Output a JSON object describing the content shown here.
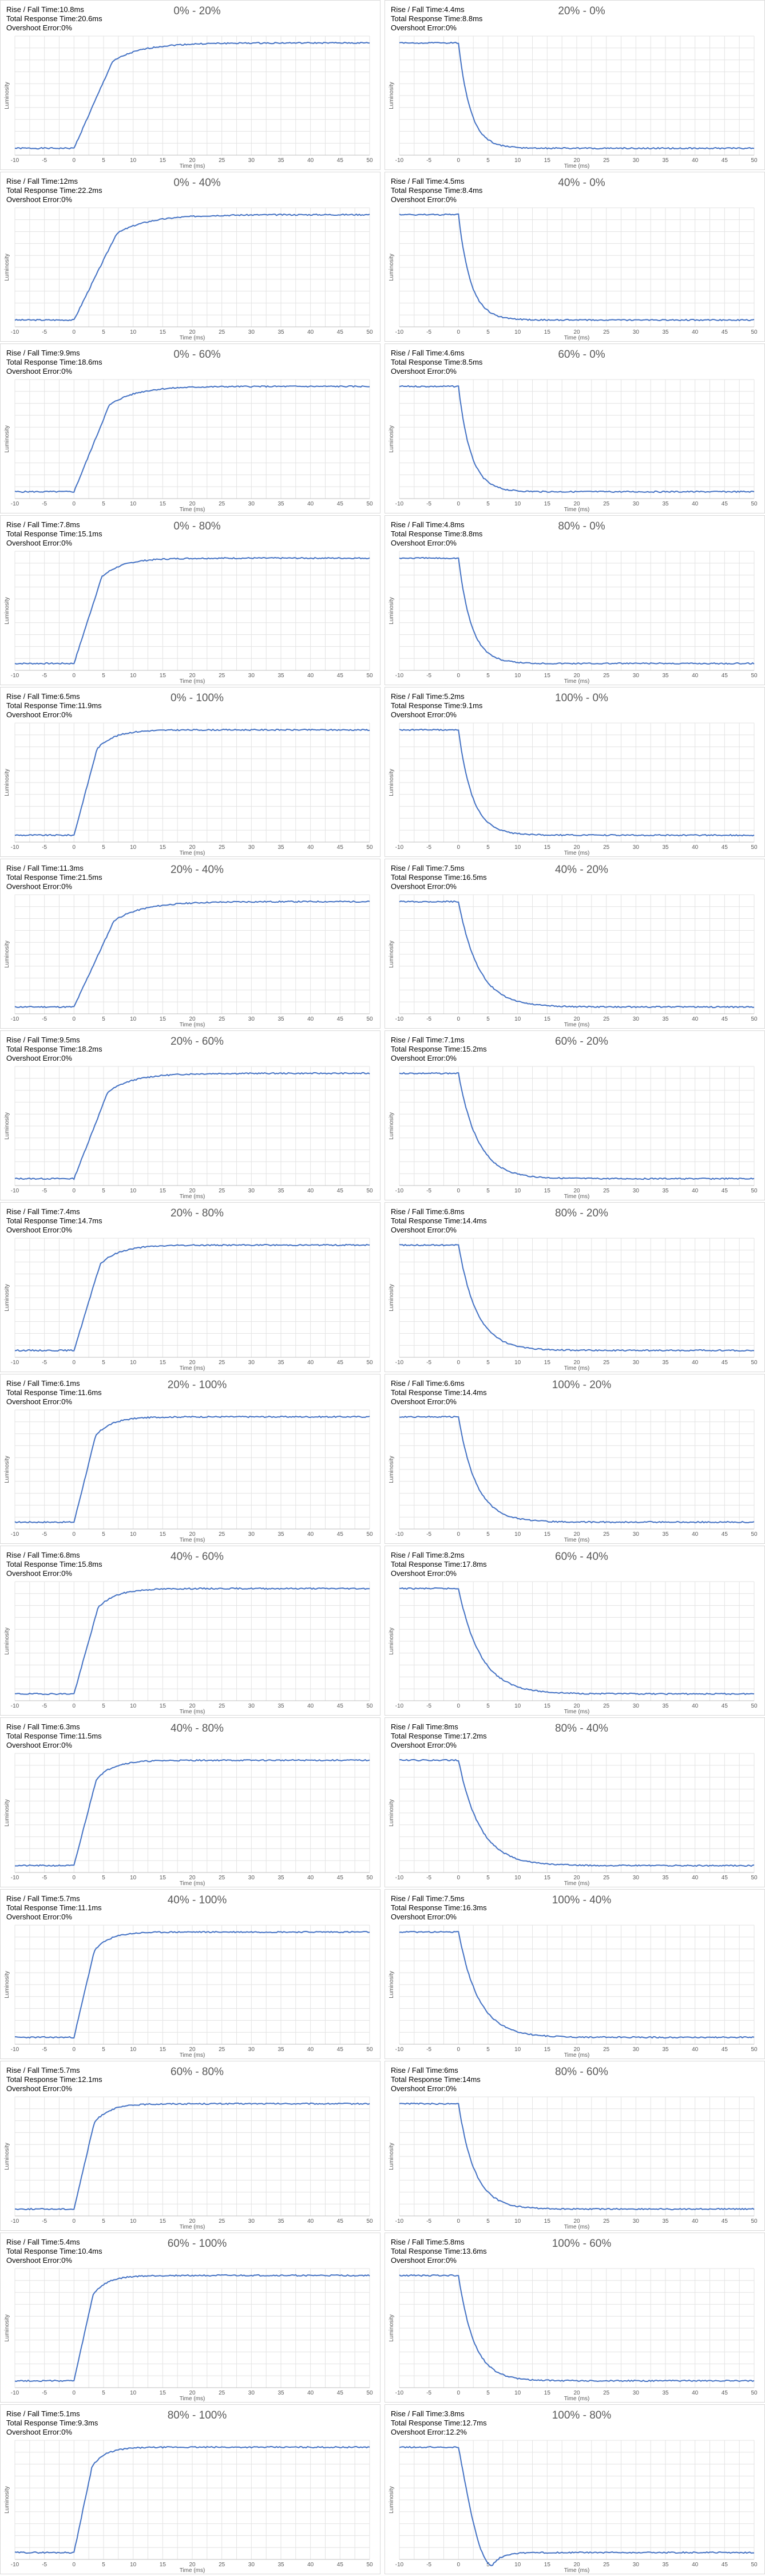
{
  "common": {
    "rf_label": "Rise / Fall Time:",
    "total_label": "Total Response Time:",
    "overshoot_label": "Overshoot Error:",
    "xlabel": "Time (ms)",
    "ylabel": "Luminosity",
    "xticks": [
      -10,
      -5,
      0,
      5,
      10,
      15,
      20,
      25,
      30,
      35,
      40,
      45,
      50
    ],
    "line_color": "#4472c4"
  },
  "panels": [
    {
      "title": "0% - 20%",
      "rise_fall": "10.8ms",
      "total": "20.6ms",
      "overshoot": "0%"
    },
    {
      "title": "20% - 0%",
      "rise_fall": "4.4ms",
      "total": "8.8ms",
      "overshoot": "0%"
    },
    {
      "title": "0% - 40%",
      "rise_fall": "12ms",
      "total": "22.2ms",
      "overshoot": "0%"
    },
    {
      "title": "40% - 0%",
      "rise_fall": "4.5ms",
      "total": "8.4ms",
      "overshoot": "0%"
    },
    {
      "title": "0% - 60%",
      "rise_fall": "9.9ms",
      "total": "18.6ms",
      "overshoot": "0%"
    },
    {
      "title": "60% - 0%",
      "rise_fall": "4.6ms",
      "total": "8.5ms",
      "overshoot": "0%"
    },
    {
      "title": "0% - 80%",
      "rise_fall": "7.8ms",
      "total": "15.1ms",
      "overshoot": "0%"
    },
    {
      "title": "80% - 0%",
      "rise_fall": "4.8ms",
      "total": "8.8ms",
      "overshoot": "0%"
    },
    {
      "title": "0% - 100%",
      "rise_fall": "6.5ms",
      "total": "11.9ms",
      "overshoot": "0%"
    },
    {
      "title": "100% - 0%",
      "rise_fall": "5.2ms",
      "total": "9.1ms",
      "overshoot": "0%"
    },
    {
      "title": "20% - 40%",
      "rise_fall": "11.3ms",
      "total": "21.5ms",
      "overshoot": "0%"
    },
    {
      "title": "40% - 20%",
      "rise_fall": "7.5ms",
      "total": "16.5ms",
      "overshoot": "0%"
    },
    {
      "title": "20% - 60%",
      "rise_fall": "9.5ms",
      "total": "18.2ms",
      "overshoot": "0%"
    },
    {
      "title": "60% - 20%",
      "rise_fall": "7.1ms",
      "total": "15.2ms",
      "overshoot": "0%"
    },
    {
      "title": "20% - 80%",
      "rise_fall": "7.4ms",
      "total": "14.7ms",
      "overshoot": "0%"
    },
    {
      "title": "80% - 20%",
      "rise_fall": "6.8ms",
      "total": "14.4ms",
      "overshoot": "0%"
    },
    {
      "title": "20% - 100%",
      "rise_fall": "6.1ms",
      "total": "11.6ms",
      "overshoot": "0%"
    },
    {
      "title": "100% - 20%",
      "rise_fall": "6.6ms",
      "total": "14.4ms",
      "overshoot": "0%"
    },
    {
      "title": "40% - 60%",
      "rise_fall": "6.8ms",
      "total": "15.8ms",
      "overshoot": "0%"
    },
    {
      "title": "60% - 40%",
      "rise_fall": "8.2ms",
      "total": "17.8ms",
      "overshoot": "0%"
    },
    {
      "title": "40% - 80%",
      "rise_fall": "6.3ms",
      "total": "11.5ms",
      "overshoot": "0%"
    },
    {
      "title": "80% - 40%",
      "rise_fall": "8ms",
      "total": "17.2ms",
      "overshoot": "0%"
    },
    {
      "title": "40% - 100%",
      "rise_fall": "5.7ms",
      "total": "11.1ms",
      "overshoot": "0%"
    },
    {
      "title": "100% - 40%",
      "rise_fall": "7.5ms",
      "total": "16.3ms",
      "overshoot": "0%"
    },
    {
      "title": "60% - 80%",
      "rise_fall": "5.7ms",
      "total": "12.1ms",
      "overshoot": "0%"
    },
    {
      "title": "80% - 60%",
      "rise_fall": "6ms",
      "total": "14ms",
      "overshoot": "0%"
    },
    {
      "title": "60% - 100%",
      "rise_fall": "5.4ms",
      "total": "10.4ms",
      "overshoot": "0%"
    },
    {
      "title": "100% - 60%",
      "rise_fall": "5.8ms",
      "total": "13.6ms",
      "overshoot": "0%"
    },
    {
      "title": "80% - 100%",
      "rise_fall": "5.1ms",
      "total": "9.3ms",
      "overshoot": "0%"
    },
    {
      "title": "100% - 80%",
      "rise_fall": "3.8ms",
      "total": "12.7ms",
      "overshoot": "12.2%"
    }
  ],
  "chart_data": {
    "type": "line",
    "xlabel": "Time (ms)",
    "ylabel": "Luminosity",
    "xlim": [
      -10,
      50
    ],
    "grid": true,
    "series_note_values": "each panel: step response from start level to end level; transition begins at 0 ms"
  }
}
